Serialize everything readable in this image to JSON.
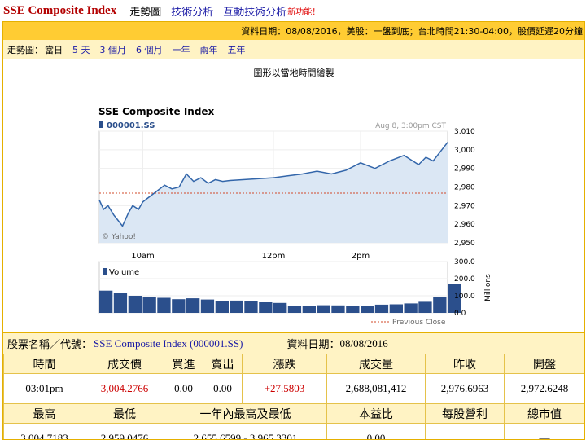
{
  "nav": {
    "brand": "SSE Composite Index",
    "links": [
      "走勢圖",
      "技術分析",
      "互動技術分析"
    ],
    "new_label": "新功能！"
  },
  "infobar": {
    "text": "資料日期：08/08/2016，美股：一盤到底；台北時間21:30-04:00，股價延遲20分鐘"
  },
  "range": {
    "label": "走勢圖：",
    "options": [
      "當日",
      "5 天",
      "3 個月",
      "6 個月",
      "一年",
      "兩年",
      "五年"
    ],
    "selected": "當日"
  },
  "chart": {
    "note": "圖形以當地時間繪製",
    "title": "SSE Composite Index",
    "symbol": "000001.SS",
    "timestamp": "Aug 8, 3:00pm CST",
    "watermark": "© Yahoo!",
    "previous_close_label": "Previous Close",
    "volume_label": "Volume",
    "volume_axis_label": "Millions",
    "colors": {
      "line": "#3366aa",
      "fill": "#dbe7f4",
      "prev_close": "#d04a2a",
      "volume": "#2b4f8c"
    }
  },
  "chart_data": {
    "type": "area",
    "title": "SSE Composite Index",
    "series": [
      {
        "name": "000001.SS",
        "x": [
          "09:30",
          "09:33",
          "09:36",
          "09:40",
          "09:43",
          "09:46",
          "09:50",
          "09:53",
          "09:57",
          "10:00",
          "10:05",
          "10:10",
          "10:15",
          "10:20",
          "10:25",
          "10:30",
          "10:35",
          "10:40",
          "10:45",
          "10:50",
          "10:55",
          "11:00",
          "11:10",
          "11:20",
          "11:30",
          "13:00",
          "13:10",
          "13:20",
          "13:30",
          "13:40",
          "13:50",
          "14:00",
          "14:10",
          "14:20",
          "14:30",
          "14:40",
          "14:45",
          "14:50",
          "14:55",
          "15:00"
        ],
        "values": [
          2973,
          2968,
          2970,
          2965,
          2962,
          2959,
          2966,
          2970,
          2968,
          2972,
          2975,
          2978,
          2981,
          2979,
          2980,
          2987,
          2983,
          2985,
          2982,
          2984,
          2983,
          2983.5,
          2984,
          2984.5,
          2985,
          2985,
          2986,
          2987,
          2988.5,
          2987,
          2989,
          2993,
          2990,
          2994,
          2997,
          2992,
          2996,
          2994,
          2999,
          3004
        ]
      }
    ],
    "previous_close": 2976.6963,
    "ylim": [
      2950,
      3010
    ],
    "y_ticks": [
      "3,010",
      "3,000",
      "2,990",
      "2,980",
      "2,970",
      "2,960",
      "2,950"
    ],
    "x_ticks": [
      "10am",
      "12pm",
      "2pm"
    ],
    "volume": {
      "ylabel": "Millions",
      "ylim": [
        0,
        300
      ],
      "y_ticks": [
        "300.0",
        "200.0",
        "100.0",
        "0.0"
      ],
      "x": [
        "09:30",
        "09:40",
        "09:50",
        "10:00",
        "10:10",
        "10:20",
        "10:30",
        "10:40",
        "10:50",
        "11:00",
        "11:10",
        "11:20",
        "11:30",
        "13:00",
        "13:10",
        "13:20",
        "13:30",
        "13:40",
        "13:50",
        "14:00",
        "14:10",
        "14:20",
        "14:30",
        "14:40",
        "14:50",
        "15:00"
      ],
      "values": [
        130,
        115,
        100,
        95,
        88,
        80,
        85,
        78,
        70,
        72,
        68,
        62,
        58,
        45,
        42,
        38,
        45,
        44,
        42,
        40,
        48,
        50,
        55,
        65,
        95,
        170
      ]
    },
    "grid": true,
    "legend": "bottom-right"
  },
  "stock": {
    "name_label": "股票名稱／代號：",
    "name_value": "SSE Composite Index (000001.SS)",
    "date_label": "資料日期：",
    "date_value": "08/08/2016"
  },
  "quote": {
    "headers1": [
      "時間",
      "成交價",
      "買進",
      "賣出",
      "漲跌",
      "成交量",
      "昨收",
      "開盤"
    ],
    "values1": [
      "03:01pm",
      "3,004.2766",
      "0.00",
      "0.00",
      "+27.5803",
      "2,688,081,412",
      "2,976.6963",
      "2,972.6248"
    ],
    "headers2": [
      "最高",
      "最低",
      "一年內最高及最低",
      "本益比",
      "每股營利",
      "總市值"
    ],
    "values2": [
      "3,004.7183",
      "2,959.0476",
      "2,655.6599 - 3,965.3301",
      "0.00",
      "",
      "—"
    ],
    "up_color": "#cc0000"
  }
}
